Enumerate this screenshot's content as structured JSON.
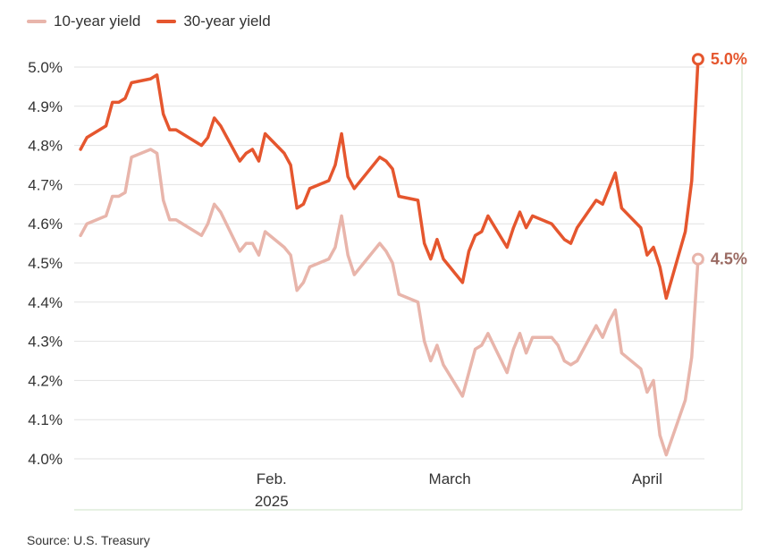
{
  "source": "Source: U.S. Treasury",
  "colors": {
    "ten_year": "#e8b5ab",
    "thirty_year": "#e5562e",
    "end_label_ten": "#9a6a62",
    "gridline": "#e2e2e2",
    "frame": "#cde3c7"
  },
  "chart_data": {
    "type": "line",
    "title": "",
    "xlabel": "",
    "ylabel": "",
    "ylim": [
      4.0,
      5.0
    ],
    "yticks": [
      "4.0%",
      "4.1%",
      "4.2%",
      "4.3%",
      "4.4%",
      "4.5%",
      "4.6%",
      "4.7%",
      "4.8%",
      "4.9%",
      "5.0%"
    ],
    "xlim": [
      "2025-01-01",
      "2025-04-10"
    ],
    "xticks": [
      {
        "label": "Feb.",
        "sublabel": "2025",
        "date": "2025-02-01"
      },
      {
        "label": "March",
        "sublabel": "",
        "date": "2025-03-01"
      },
      {
        "label": "April",
        "sublabel": "",
        "date": "2025-04-01"
      }
    ],
    "grid": true,
    "legend": "top-left",
    "series": [
      {
        "name": "10-year yield",
        "color": "#e8b5ab",
        "end_label": "4.5%",
        "points": [
          [
            "2025-01-02",
            4.57
          ],
          [
            "2025-01-03",
            4.6
          ],
          [
            "2025-01-06",
            4.62
          ],
          [
            "2025-01-07",
            4.67
          ],
          [
            "2025-01-08",
            4.67
          ],
          [
            "2025-01-09",
            4.68
          ],
          [
            "2025-01-10",
            4.77
          ],
          [
            "2025-01-13",
            4.79
          ],
          [
            "2025-01-14",
            4.78
          ],
          [
            "2025-01-15",
            4.66
          ],
          [
            "2025-01-16",
            4.61
          ],
          [
            "2025-01-17",
            4.61
          ],
          [
            "2025-01-21",
            4.57
          ],
          [
            "2025-01-22",
            4.6
          ],
          [
            "2025-01-23",
            4.65
          ],
          [
            "2025-01-24",
            4.63
          ],
          [
            "2025-01-27",
            4.53
          ],
          [
            "2025-01-28",
            4.55
          ],
          [
            "2025-01-29",
            4.55
          ],
          [
            "2025-01-30",
            4.52
          ],
          [
            "2025-01-31",
            4.58
          ],
          [
            "2025-02-03",
            4.54
          ],
          [
            "2025-02-04",
            4.52
          ],
          [
            "2025-02-05",
            4.43
          ],
          [
            "2025-02-06",
            4.45
          ],
          [
            "2025-02-07",
            4.49
          ],
          [
            "2025-02-10",
            4.51
          ],
          [
            "2025-02-11",
            4.54
          ],
          [
            "2025-02-12",
            4.62
          ],
          [
            "2025-02-13",
            4.52
          ],
          [
            "2025-02-14",
            4.47
          ],
          [
            "2025-02-18",
            4.55
          ],
          [
            "2025-02-19",
            4.53
          ],
          [
            "2025-02-20",
            4.5
          ],
          [
            "2025-02-21",
            4.42
          ],
          [
            "2025-02-24",
            4.4
          ],
          [
            "2025-02-25",
            4.3
          ],
          [
            "2025-02-26",
            4.25
          ],
          [
            "2025-02-27",
            4.29
          ],
          [
            "2025-02-28",
            4.24
          ],
          [
            "2025-03-03",
            4.16
          ],
          [
            "2025-03-04",
            4.22
          ],
          [
            "2025-03-05",
            4.28
          ],
          [
            "2025-03-06",
            4.29
          ],
          [
            "2025-03-07",
            4.32
          ],
          [
            "2025-03-10",
            4.22
          ],
          [
            "2025-03-11",
            4.28
          ],
          [
            "2025-03-12",
            4.32
          ],
          [
            "2025-03-13",
            4.27
          ],
          [
            "2025-03-14",
            4.31
          ],
          [
            "2025-03-17",
            4.31
          ],
          [
            "2025-03-18",
            4.29
          ],
          [
            "2025-03-19",
            4.25
          ],
          [
            "2025-03-20",
            4.24
          ],
          [
            "2025-03-21",
            4.25
          ],
          [
            "2025-03-24",
            4.34
          ],
          [
            "2025-03-25",
            4.31
          ],
          [
            "2025-03-26",
            4.35
          ],
          [
            "2025-03-27",
            4.38
          ],
          [
            "2025-03-28",
            4.27
          ],
          [
            "2025-03-31",
            4.23
          ],
          [
            "2025-04-01",
            4.17
          ],
          [
            "2025-04-02",
            4.2
          ],
          [
            "2025-04-03",
            4.06
          ],
          [
            "2025-04-04",
            4.01
          ],
          [
            "2025-04-07",
            4.15
          ],
          [
            "2025-04-08",
            4.26
          ],
          [
            "2025-04-09",
            4.51
          ]
        ]
      },
      {
        "name": "30-year yield",
        "color": "#e5562e",
        "end_label": "5.0%",
        "points": [
          [
            "2025-01-02",
            4.79
          ],
          [
            "2025-01-03",
            4.82
          ],
          [
            "2025-01-06",
            4.85
          ],
          [
            "2025-01-07",
            4.91
          ],
          [
            "2025-01-08",
            4.91
          ],
          [
            "2025-01-09",
            4.92
          ],
          [
            "2025-01-10",
            4.96
          ],
          [
            "2025-01-13",
            4.97
          ],
          [
            "2025-01-14",
            4.98
          ],
          [
            "2025-01-15",
            4.88
          ],
          [
            "2025-01-16",
            4.84
          ],
          [
            "2025-01-17",
            4.84
          ],
          [
            "2025-01-21",
            4.8
          ],
          [
            "2025-01-22",
            4.82
          ],
          [
            "2025-01-23",
            4.87
          ],
          [
            "2025-01-24",
            4.85
          ],
          [
            "2025-01-27",
            4.76
          ],
          [
            "2025-01-28",
            4.78
          ],
          [
            "2025-01-29",
            4.79
          ],
          [
            "2025-01-30",
            4.76
          ],
          [
            "2025-01-31",
            4.83
          ],
          [
            "2025-02-03",
            4.78
          ],
          [
            "2025-02-04",
            4.75
          ],
          [
            "2025-02-05",
            4.64
          ],
          [
            "2025-02-06",
            4.65
          ],
          [
            "2025-02-07",
            4.69
          ],
          [
            "2025-02-10",
            4.71
          ],
          [
            "2025-02-11",
            4.75
          ],
          [
            "2025-02-12",
            4.83
          ],
          [
            "2025-02-13",
            4.72
          ],
          [
            "2025-02-14",
            4.69
          ],
          [
            "2025-02-18",
            4.77
          ],
          [
            "2025-02-19",
            4.76
          ],
          [
            "2025-02-20",
            4.74
          ],
          [
            "2025-02-21",
            4.67
          ],
          [
            "2025-02-24",
            4.66
          ],
          [
            "2025-02-25",
            4.55
          ],
          [
            "2025-02-26",
            4.51
          ],
          [
            "2025-02-27",
            4.56
          ],
          [
            "2025-02-28",
            4.51
          ],
          [
            "2025-03-03",
            4.45
          ],
          [
            "2025-03-04",
            4.53
          ],
          [
            "2025-03-05",
            4.57
          ],
          [
            "2025-03-06",
            4.58
          ],
          [
            "2025-03-07",
            4.62
          ],
          [
            "2025-03-10",
            4.54
          ],
          [
            "2025-03-11",
            4.59
          ],
          [
            "2025-03-12",
            4.63
          ],
          [
            "2025-03-13",
            4.59
          ],
          [
            "2025-03-14",
            4.62
          ],
          [
            "2025-03-17",
            4.6
          ],
          [
            "2025-03-18",
            4.58
          ],
          [
            "2025-03-19",
            4.56
          ],
          [
            "2025-03-20",
            4.55
          ],
          [
            "2025-03-21",
            4.59
          ],
          [
            "2025-03-24",
            4.66
          ],
          [
            "2025-03-25",
            4.65
          ],
          [
            "2025-03-26",
            4.69
          ],
          [
            "2025-03-27",
            4.73
          ],
          [
            "2025-03-28",
            4.64
          ],
          [
            "2025-03-31",
            4.59
          ],
          [
            "2025-04-01",
            4.52
          ],
          [
            "2025-04-02",
            4.54
          ],
          [
            "2025-04-03",
            4.49
          ],
          [
            "2025-04-04",
            4.41
          ],
          [
            "2025-04-07",
            4.58
          ],
          [
            "2025-04-08",
            4.71
          ],
          [
            "2025-04-09",
            5.02
          ]
        ]
      }
    ]
  }
}
